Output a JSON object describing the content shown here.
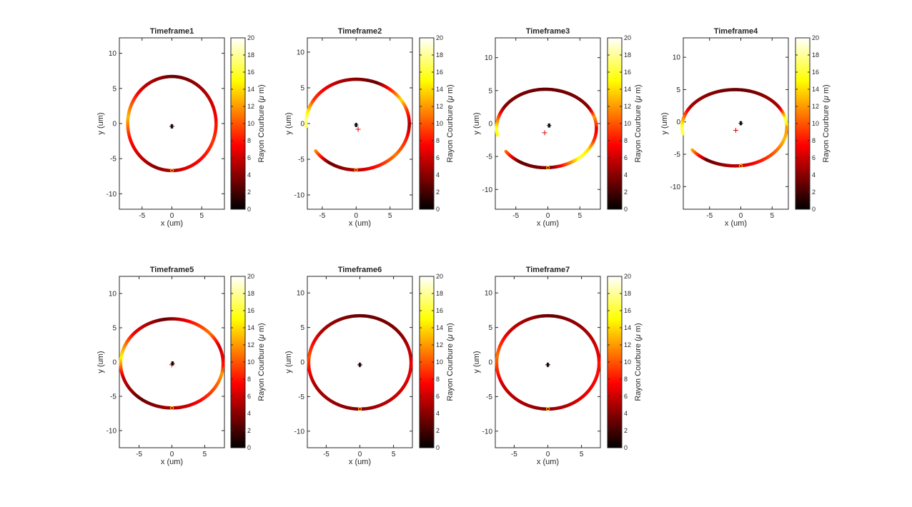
{
  "chart_data": [
    {
      "type": "scatter",
      "title": "Timeframe1",
      "xlabel": "x (um)",
      "ylabel": "y (um)",
      "colorbar_label": "Rayon Courbure ($\\mu$ m)",
      "xlim": [
        -8.8,
        8.8
      ],
      "ylim": [
        -12.2,
        12.2
      ],
      "xticks": [
        -5,
        0,
        5
      ],
      "yticks": [
        -10,
        -5,
        0,
        5,
        10
      ],
      "clim": [
        0,
        20
      ],
      "cbticks": [
        0,
        2,
        4,
        6,
        8,
        10,
        12,
        14,
        16,
        18,
        20
      ],
      "shape": {
        "cx": 0,
        "cy": 0,
        "rx": 7.4,
        "ry": 6.7,
        "x_right_factor": 1.0,
        "y_top": 6.7,
        "y_bottom": -6.7,
        "gap_start_deg": null,
        "gap_end_deg": null
      },
      "colors": [
        {
          "angle": 0,
          "value": 8
        },
        {
          "angle": 45,
          "value": 5
        },
        {
          "angle": 90,
          "value": 3
        },
        {
          "angle": 135,
          "value": 6
        },
        {
          "angle": 175,
          "value": 13
        },
        {
          "angle": 200,
          "value": 8
        },
        {
          "angle": 250,
          "value": 4
        },
        {
          "angle": 300,
          "value": 7
        },
        {
          "angle": 340,
          "value": 9
        },
        {
          "angle": 360,
          "value": 8
        }
      ],
      "star_marker": {
        "x": 0,
        "y": -0.4
      },
      "plus_marker": {
        "x": 0,
        "y": -0.4
      },
      "ring_marker": {
        "x": 0,
        "y": -6.7
      }
    },
    {
      "type": "scatter",
      "title": "Timeframe2",
      "xlabel": "x (um)",
      "ylabel": "y (um)",
      "colorbar_label": "Rayon Courbure ($\\mu$ m)",
      "xlim": [
        -7.2,
        8.3
      ],
      "ylim": [
        -12.0,
        12.0
      ],
      "xticks": [
        -5,
        0,
        5
      ],
      "yticks": [
        -10,
        -5,
        0,
        5,
        10
      ],
      "clim": [
        0,
        20
      ],
      "cbticks": [
        0,
        2,
        4,
        6,
        8,
        10,
        12,
        14,
        16,
        18,
        20
      ],
      "shape": {
        "cx": 0,
        "cy": 0,
        "rx": 7.4,
        "ry": 6.2,
        "x_right_factor": 1.06,
        "y_top": 6.2,
        "y_bottom": -6.5,
        "gap_start_deg": 185,
        "gap_end_deg": 215
      },
      "colors": [
        {
          "angle": 0,
          "value": 5
        },
        {
          "angle": 20,
          "value": 9
        },
        {
          "angle": 35,
          "value": 14
        },
        {
          "angle": 70,
          "value": 3
        },
        {
          "angle": 110,
          "value": 5
        },
        {
          "angle": 150,
          "value": 9
        },
        {
          "angle": 178,
          "value": 18
        },
        {
          "angle": 215,
          "value": 13
        },
        {
          "angle": 240,
          "value": 3
        },
        {
          "angle": 280,
          "value": 6
        },
        {
          "angle": 320,
          "value": 11
        },
        {
          "angle": 345,
          "value": 8
        },
        {
          "angle": 360,
          "value": 5
        }
      ],
      "star_marker": {
        "x": 0,
        "y": -0.2
      },
      "plus_marker": {
        "x": 0.3,
        "y": -0.8
      },
      "ring_marker": {
        "x": 0,
        "y": -6.5
      }
    },
    {
      "type": "scatter",
      "title": "Timeframe3",
      "xlabel": "x (um)",
      "ylabel": "y (um)",
      "colorbar_label": "Rayon Courbure ($\\mu$ m)",
      "xlim": [
        -8.2,
        8.2
      ],
      "ylim": [
        -13.0,
        13.0
      ],
      "xticks": [
        -5,
        0,
        5
      ],
      "yticks": [
        -10,
        -5,
        0,
        5,
        10
      ],
      "clim": [
        0,
        20
      ],
      "cbticks": [
        0,
        2,
        4,
        6,
        8,
        10,
        12,
        14,
        16,
        18,
        20
      ],
      "shape": {
        "cx": -0.4,
        "cy": -0.7,
        "rx": 7.6,
        "ry": 5.9,
        "x_right_factor": 1.05,
        "y_top": 5.2,
        "y_bottom": -6.7,
        "gap_start_deg": 190,
        "gap_end_deg": 215
      },
      "colors": [
        {
          "angle": 0,
          "value": 7
        },
        {
          "angle": 20,
          "value": 12
        },
        {
          "angle": 35,
          "value": 4
        },
        {
          "angle": 90,
          "value": 3
        },
        {
          "angle": 150,
          "value": 4
        },
        {
          "angle": 185,
          "value": 16
        },
        {
          "angle": 215,
          "value": 12
        },
        {
          "angle": 240,
          "value": 3
        },
        {
          "angle": 280,
          "value": 4
        },
        {
          "angle": 315,
          "value": 16
        },
        {
          "angle": 330,
          "value": 14
        },
        {
          "angle": 345,
          "value": 9
        },
        {
          "angle": 360,
          "value": 7
        }
      ],
      "star_marker": {
        "x": 0.2,
        "y": -0.3
      },
      "plus_marker": {
        "x": -0.5,
        "y": -1.4
      },
      "ring_marker": {
        "x": 0,
        "y": -6.7
      }
    },
    {
      "type": "scatter",
      "title": "Timeframe4",
      "xlabel": "x (um)",
      "ylabel": "y (um)",
      "colorbar_label": "Rayon Courbure ($\\mu$ m)",
      "xlim": [
        -9.2,
        7.6
      ],
      "ylim": [
        -13.5,
        13.0
      ],
      "xticks": [
        -5,
        0,
        5
      ],
      "yticks": [
        -10,
        -5,
        0,
        5,
        10
      ],
      "clim": [
        0,
        20
      ],
      "cbticks": [
        0,
        2,
        4,
        6,
        8,
        10,
        12,
        14,
        16,
        18,
        20
      ],
      "shape": {
        "cx": -0.9,
        "cy": -0.8,
        "rx": 8.5,
        "ry": 5.8,
        "x_right_factor": 0.97,
        "y_top": 5.0,
        "y_bottom": -6.8,
        "gap_start_deg": 190,
        "gap_end_deg": 215
      },
      "colors": [
        {
          "angle": 0,
          "value": 12
        },
        {
          "angle": 15,
          "value": 17
        },
        {
          "angle": 35,
          "value": 5
        },
        {
          "angle": 90,
          "value": 3
        },
        {
          "angle": 150,
          "value": 5
        },
        {
          "angle": 185,
          "value": 17
        },
        {
          "angle": 215,
          "value": 14
        },
        {
          "angle": 240,
          "value": 3
        },
        {
          "angle": 280,
          "value": 6
        },
        {
          "angle": 320,
          "value": 10
        },
        {
          "angle": 345,
          "value": 13
        },
        {
          "angle": 360,
          "value": 12
        }
      ],
      "star_marker": {
        "x": 0,
        "y": -0.2
      },
      "plus_marker": {
        "x": -0.8,
        "y": -1.3
      },
      "ring_marker": {
        "x": 0,
        "y": -6.8
      }
    },
    {
      "type": "scatter",
      "title": "Timeframe5",
      "xlabel": "x (um)",
      "ylabel": "y (um)",
      "colorbar_label": "Rayon Courbure ($\\mu$ m)",
      "xlim": [
        -8.0,
        8.0
      ],
      "ylim": [
        -12.5,
        12.5
      ],
      "xticks": [
        -5,
        0,
        5
      ],
      "yticks": [
        -10,
        -5,
        0,
        5,
        10
      ],
      "clim": [
        0,
        20
      ],
      "cbticks": [
        0,
        2,
        4,
        6,
        8,
        10,
        12,
        14,
        16,
        18,
        20
      ],
      "shape": {
        "cx": 0,
        "cy": -0.2,
        "rx": 7.8,
        "ry": 6.5,
        "x_right_factor": 1.0,
        "y_top": 6.3,
        "y_bottom": -6.7,
        "gap_start_deg": null,
        "gap_end_deg": null
      },
      "colors": [
        {
          "angle": 0,
          "value": 8
        },
        {
          "angle": 25,
          "value": 6
        },
        {
          "angle": 45,
          "value": 11
        },
        {
          "angle": 70,
          "value": 8
        },
        {
          "angle": 100,
          "value": 3
        },
        {
          "angle": 140,
          "value": 7
        },
        {
          "angle": 175,
          "value": 15
        },
        {
          "angle": 200,
          "value": 6
        },
        {
          "angle": 235,
          "value": 3
        },
        {
          "angle": 290,
          "value": 6
        },
        {
          "angle": 330,
          "value": 10
        },
        {
          "angle": 350,
          "value": 12
        },
        {
          "angle": 360,
          "value": 8
        }
      ],
      "star_marker": {
        "x": 0.1,
        "y": -0.2
      },
      "plus_marker": {
        "x": 0,
        "y": -0.4
      },
      "ring_marker": {
        "x": 0,
        "y": -6.7
      }
    },
    {
      "type": "scatter",
      "title": "Timeframe6",
      "xlabel": "x (um)",
      "ylabel": "y (um)",
      "colorbar_label": "Rayon Courbure ($\\mu$ m)",
      "xlim": [
        -7.8,
        7.8
      ],
      "ylim": [
        -12.4,
        12.4
      ],
      "xticks": [
        -5,
        0,
        5
      ],
      "yticks": [
        -10,
        -5,
        0,
        5,
        10
      ],
      "clim": [
        0,
        20
      ],
      "cbticks": [
        0,
        2,
        4,
        6,
        8,
        10,
        12,
        14,
        16,
        18,
        20
      ],
      "shape": {
        "cx": 0,
        "cy": -0.1,
        "rx": 7.6,
        "ry": 6.7,
        "x_right_factor": 1.0,
        "y_top": 6.7,
        "y_bottom": -6.8,
        "gap_start_deg": null,
        "gap_end_deg": null
      },
      "colors": [
        {
          "angle": 0,
          "value": 7
        },
        {
          "angle": 40,
          "value": 4
        },
        {
          "angle": 90,
          "value": 3
        },
        {
          "angle": 140,
          "value": 5
        },
        {
          "angle": 175,
          "value": 10
        },
        {
          "angle": 210,
          "value": 5
        },
        {
          "angle": 270,
          "value": 4
        },
        {
          "angle": 320,
          "value": 6
        },
        {
          "angle": 360,
          "value": 7
        }
      ],
      "star_marker": {
        "x": 0,
        "y": -0.4
      },
      "plus_marker": {
        "x": 0,
        "y": -0.4
      },
      "ring_marker": {
        "x": 0,
        "y": -6.8
      }
    },
    {
      "type": "scatter",
      "title": "Timeframe7",
      "xlabel": "x (um)",
      "ylabel": "y (um)",
      "colorbar_label": "Rayon Courbure ($\\mu$ m)",
      "xlim": [
        -7.8,
        7.8
      ],
      "ylim": [
        -12.4,
        12.4
      ],
      "xticks": [
        -5,
        0,
        5
      ],
      "yticks": [
        -10,
        -5,
        0,
        5,
        10
      ],
      "clim": [
        0,
        20
      ],
      "cbticks": [
        0,
        2,
        4,
        6,
        8,
        10,
        12,
        14,
        16,
        18,
        20
      ],
      "shape": {
        "cx": 0,
        "cy": -0.1,
        "rx": 7.6,
        "ry": 6.7,
        "x_right_factor": 1.0,
        "y_top": 6.7,
        "y_bottom": -6.8,
        "gap_start_deg": null,
        "gap_end_deg": null
      },
      "colors": [
        {
          "angle": 0,
          "value": 8
        },
        {
          "angle": 40,
          "value": 5
        },
        {
          "angle": 90,
          "value": 3
        },
        {
          "angle": 140,
          "value": 6
        },
        {
          "angle": 175,
          "value": 11
        },
        {
          "angle": 210,
          "value": 6
        },
        {
          "angle": 270,
          "value": 4
        },
        {
          "angle": 320,
          "value": 7
        },
        {
          "angle": 360,
          "value": 8
        }
      ],
      "star_marker": {
        "x": 0,
        "y": -0.4
      },
      "plus_marker": {
        "x": 0,
        "y": -0.4
      },
      "ring_marker": {
        "x": 0,
        "y": -6.8
      }
    }
  ]
}
